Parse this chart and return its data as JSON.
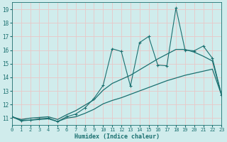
{
  "title": "",
  "xlabel": "Humidex (Indice chaleur)",
  "ylabel": "",
  "background_color": "#d0ecec",
  "grid_color": "#e8c8c8",
  "line_color": "#1a7070",
  "x": [
    0,
    1,
    2,
    3,
    4,
    5,
    6,
    7,
    8,
    9,
    10,
    11,
    12,
    13,
    14,
    15,
    16,
    17,
    18,
    19,
    20,
    21,
    22,
    23
  ],
  "y_zigzag": [
    11.1,
    10.8,
    10.85,
    10.95,
    11.0,
    10.75,
    11.1,
    11.3,
    11.75,
    12.45,
    13.4,
    16.1,
    15.9,
    13.35,
    16.55,
    17.0,
    14.9,
    14.85,
    19.1,
    16.0,
    15.95,
    16.3,
    15.4,
    12.7
  ],
  "y_upper": [
    11.1,
    10.9,
    11.0,
    11.05,
    11.1,
    10.9,
    11.25,
    11.55,
    11.95,
    12.35,
    13.05,
    13.55,
    13.85,
    14.15,
    14.55,
    14.95,
    15.35,
    15.7,
    16.05,
    16.05,
    15.85,
    15.55,
    15.2,
    12.7
  ],
  "y_lower": [
    11.1,
    10.85,
    10.85,
    10.9,
    10.95,
    10.75,
    11.0,
    11.1,
    11.35,
    11.65,
    12.05,
    12.3,
    12.5,
    12.75,
    13.0,
    13.25,
    13.5,
    13.75,
    13.95,
    14.15,
    14.3,
    14.45,
    14.6,
    12.7
  ],
  "xlim": [
    0,
    23
  ],
  "ylim": [
    10.5,
    19.5
  ],
  "yticks": [
    11,
    12,
    13,
    14,
    15,
    16,
    17,
    18,
    19
  ],
  "xticks": [
    0,
    1,
    2,
    3,
    4,
    5,
    6,
    7,
    8,
    9,
    10,
    11,
    12,
    13,
    14,
    15,
    16,
    17,
    18,
    19,
    20,
    21,
    22,
    23
  ],
  "xlabel_fontsize": 6.0,
  "tick_fontsize": 5.0,
  "ytick_fontsize": 5.5
}
